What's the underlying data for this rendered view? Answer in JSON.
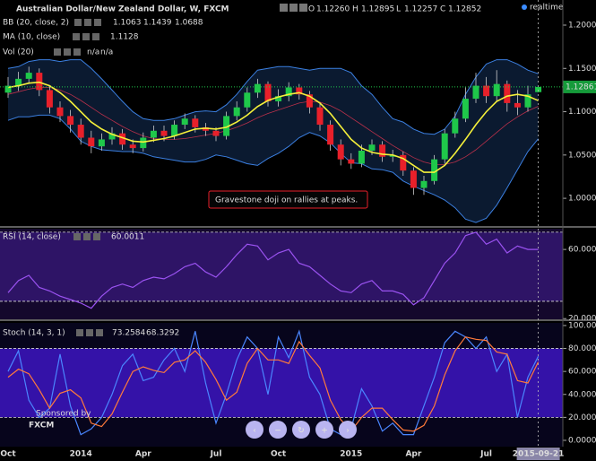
{
  "chart_data": [
    {
      "type": "candlestick",
      "title": "Australian Dollar/New Zealand Dollar, W, FXCM",
      "readout": {
        "labels": [
          "O",
          "H",
          "L",
          "C"
        ],
        "values": [
          1.1226,
          1.12895,
          1.12257,
          1.12852
        ],
        "value_labels": [
          "1.12260",
          "1.12895",
          "1.12257",
          "1.12852"
        ]
      },
      "status": "realtime",
      "open": [
        1.122,
        1.13,
        1.138,
        1.145,
        1.125,
        1.105,
        1.095,
        1.085,
        1.07,
        1.06,
        1.068,
        1.075,
        1.062,
        1.058,
        1.07,
        1.078,
        1.072,
        1.085,
        1.092,
        1.082,
        1.078,
        1.072,
        1.095,
        1.105,
        1.122,
        1.132,
        1.112,
        1.118,
        1.128,
        1.12,
        1.105,
        1.085,
        1.062,
        1.045,
        1.04,
        1.055,
        1.062,
        1.048,
        1.05,
        1.032,
        1.012,
        1.02,
        1.045,
        1.075,
        1.092,
        1.115,
        1.13,
        1.118,
        1.132,
        1.11,
        1.105,
        1.1226
      ],
      "high": [
        1.14,
        1.146,
        1.152,
        1.15,
        1.13,
        1.112,
        1.102,
        1.092,
        1.078,
        1.075,
        1.082,
        1.08,
        1.068,
        1.076,
        1.084,
        1.084,
        1.09,
        1.098,
        1.096,
        1.087,
        1.082,
        1.1,
        1.112,
        1.128,
        1.138,
        1.135,
        1.126,
        1.134,
        1.132,
        1.124,
        1.11,
        1.09,
        1.068,
        1.052,
        1.062,
        1.068,
        1.066,
        1.056,
        1.054,
        1.036,
        1.026,
        1.05,
        1.08,
        1.1,
        1.128,
        1.145,
        1.14,
        1.148,
        1.136,
        1.125,
        1.13,
        1.12895
      ],
      "low": [
        1.116,
        1.124,
        1.132,
        1.118,
        1.098,
        1.088,
        1.076,
        1.062,
        1.052,
        1.055,
        1.062,
        1.056,
        1.052,
        1.054,
        1.065,
        1.066,
        1.068,
        1.08,
        1.076,
        1.072,
        1.066,
        1.068,
        1.09,
        1.1,
        1.116,
        1.106,
        1.106,
        1.112,
        1.114,
        1.098,
        1.078,
        1.055,
        1.038,
        1.034,
        1.036,
        1.05,
        1.042,
        1.042,
        1.026,
        1.004,
        1.004,
        1.016,
        1.04,
        1.07,
        1.088,
        1.11,
        1.11,
        1.112,
        1.1,
        1.096,
        1.1,
        1.12257
      ],
      "close": [
        1.13,
        1.138,
        1.145,
        1.125,
        1.105,
        1.095,
        1.085,
        1.07,
        1.06,
        1.068,
        1.075,
        1.062,
        1.058,
        1.07,
        1.078,
        1.072,
        1.085,
        1.092,
        1.082,
        1.078,
        1.072,
        1.095,
        1.105,
        1.122,
        1.132,
        1.112,
        1.118,
        1.128,
        1.12,
        1.105,
        1.085,
        1.062,
        1.045,
        1.04,
        1.055,
        1.062,
        1.048,
        1.05,
        1.032,
        1.012,
        1.02,
        1.045,
        1.075,
        1.092,
        1.115,
        1.13,
        1.118,
        1.132,
        1.11,
        1.105,
        1.12,
        1.12852
      ],
      "up_color": "#1fc84a",
      "down_color": "#e8202a",
      "bb": {
        "name": "BB (20, close, 2)",
        "upper_color": "#3b7fe0",
        "middle_color": "#b8304a",
        "fill": "#0b1a30",
        "middle": [
          1.12,
          1.123,
          1.126,
          1.128,
          1.128,
          1.125,
          1.12,
          1.113,
          1.105,
          1.097,
          1.09,
          1.083,
          1.077,
          1.072,
          1.069,
          1.068,
          1.068,
          1.069,
          1.071,
          1.073,
          1.075,
          1.078,
          1.082,
          1.087,
          1.093,
          1.098,
          1.102,
          1.106,
          1.11,
          1.112,
          1.111,
          1.107,
          1.101,
          1.093,
          1.085,
          1.077,
          1.069,
          1.061,
          1.054,
          1.047,
          1.042,
          1.039,
          1.039,
          1.042,
          1.048,
          1.056,
          1.066,
          1.076,
          1.086,
          1.094,
          1.101,
          1.1063
        ],
        "upper": [
          1.15,
          1.152,
          1.158,
          1.16,
          1.16,
          1.158,
          1.16,
          1.16,
          1.15,
          1.138,
          1.125,
          1.112,
          1.1,
          1.092,
          1.09,
          1.09,
          1.092,
          1.096,
          1.1,
          1.101,
          1.1,
          1.108,
          1.12,
          1.135,
          1.148,
          1.15,
          1.152,
          1.152,
          1.15,
          1.148,
          1.15,
          1.15,
          1.15,
          1.145,
          1.13,
          1.12,
          1.105,
          1.092,
          1.088,
          1.08,
          1.075,
          1.074,
          1.08,
          1.095,
          1.12,
          1.14,
          1.155,
          1.16,
          1.16,
          1.155,
          1.148,
          1.1439
        ],
        "lower": [
          1.09,
          1.094,
          1.094,
          1.096,
          1.096,
          1.092,
          1.08,
          1.066,
          1.06,
          1.056,
          1.055,
          1.054,
          1.054,
          1.052,
          1.048,
          1.046,
          1.044,
          1.042,
          1.042,
          1.045,
          1.05,
          1.048,
          1.044,
          1.04,
          1.038,
          1.046,
          1.052,
          1.06,
          1.07,
          1.076,
          1.072,
          1.064,
          1.052,
          1.041,
          1.04,
          1.034,
          1.033,
          1.03,
          1.02,
          1.014,
          1.009,
          1.004,
          0.998,
          0.989,
          0.976,
          0.972,
          0.977,
          0.992,
          1.012,
          1.033,
          1.054,
          1.0688
        ]
      },
      "ma": {
        "name": "MA (10, close)",
        "color": "#f5f03a",
        "values": [
          1.128,
          1.13,
          1.133,
          1.134,
          1.13,
          1.122,
          1.112,
          1.1,
          1.088,
          1.08,
          1.074,
          1.07,
          1.066,
          1.065,
          1.067,
          1.069,
          1.072,
          1.076,
          1.08,
          1.081,
          1.08,
          1.082,
          1.088,
          1.096,
          1.106,
          1.113,
          1.117,
          1.12,
          1.122,
          1.118,
          1.11,
          1.098,
          1.083,
          1.068,
          1.058,
          1.053,
          1.051,
          1.05,
          1.046,
          1.038,
          1.03,
          1.03,
          1.038,
          1.052,
          1.068,
          1.085,
          1.1,
          1.112,
          1.118,
          1.12,
          1.118,
          1.1128
        ]
      },
      "vol": {
        "name": "Vol (20)",
        "readout": [
          "n/a",
          "n/a"
        ]
      },
      "last_price": 1.12861,
      "annotation": "Gravestone doji on rallies at peaks.",
      "ylim": [
        0.968,
        1.229
      ],
      "yticks": [
        {
          "value": 1.0,
          "label": "1.00000"
        },
        {
          "value": 1.05,
          "label": "1.05000"
        },
        {
          "value": 1.1,
          "label": "1.10000"
        },
        {
          "value": 1.15,
          "label": "1.15000"
        },
        {
          "value": 1.2,
          "label": "1.20000"
        }
      ]
    },
    {
      "type": "line",
      "title": "RSI (14, close)",
      "color": "#9a52f0",
      "values": [
        35,
        42,
        45,
        38,
        36,
        33,
        31,
        29,
        26,
        33,
        38,
        40,
        38,
        42,
        44,
        43,
        46,
        50,
        52,
        47,
        44,
        50,
        57,
        63,
        62,
        54,
        58,
        60,
        52,
        50,
        45,
        40,
        36,
        35,
        40,
        42,
        36,
        36,
        34,
        28,
        32,
        42,
        52,
        58,
        68,
        70,
        63,
        66,
        58,
        62,
        60,
        60.0011
      ],
      "levels": [
        30,
        70
      ],
      "ylim": [
        19.6,
        72
      ],
      "yticks": [
        {
          "value": 20,
          "label": "20.0000"
        },
        {
          "value": 60,
          "label": "60.0000"
        }
      ]
    },
    {
      "type": "line",
      "title": "Stoch (14, 3, 1)",
      "series": [
        {
          "name": "%K",
          "color": "#4a86ff",
          "values": [
            60,
            78,
            35,
            20,
            28,
            75,
            30,
            5,
            10,
            20,
            40,
            65,
            75,
            52,
            55,
            70,
            80,
            60,
            95,
            50,
            15,
            40,
            70,
            90,
            80,
            40,
            90,
            72,
            95,
            55,
            40,
            10,
            5,
            10,
            45,
            30,
            8,
            15,
            5,
            5,
            30,
            55,
            85,
            95,
            90,
            80,
            90,
            60,
            75,
            20,
            55,
            73.2584
          ]
        },
        {
          "name": "%D",
          "color": "#ff7a3a",
          "values": [
            55,
            62,
            58,
            44,
            28,
            41,
            44,
            37,
            15,
            12,
            23,
            42,
            60,
            64,
            61,
            59,
            68,
            70,
            78,
            68,
            53,
            35,
            42,
            67,
            80,
            70,
            70,
            67,
            86,
            74,
            63,
            35,
            18,
            8,
            20,
            28,
            28,
            18,
            9,
            8,
            13,
            30,
            57,
            78,
            90,
            88,
            87,
            77,
            75,
            52,
            50,
            68.3292
          ]
        }
      ],
      "levels": [
        20,
        80
      ],
      "categories": [
        "Oct",
        null,
        null,
        null,
        null,
        null,
        null,
        "2014",
        null,
        null,
        null,
        null,
        null,
        "Apr",
        null,
        null,
        null,
        null,
        null,
        null,
        "Jul",
        null,
        null,
        null,
        null,
        null,
        "Oct",
        null,
        null,
        null,
        null,
        null,
        null,
        "2015",
        null,
        null,
        null,
        null,
        null,
        "Apr",
        null,
        null,
        null,
        null,
        null,
        null,
        "Jul",
        null,
        null,
        null,
        null,
        "2015-09-21"
      ],
      "ylim": [
        -5.5,
        102.3
      ],
      "yticks": [
        {
          "value": 0,
          "label": "0.0000"
        },
        {
          "value": 20,
          "label": "20.0000"
        },
        {
          "value": 40,
          "label": "40.0000"
        },
        {
          "value": 60,
          "label": "60.0000"
        },
        {
          "value": 80,
          "label": "80.0000"
        },
        {
          "value": 100,
          "label": "100.0000"
        }
      ]
    }
  ],
  "branding": {
    "sponsor": "Sponsored by",
    "brand": "FXCM"
  }
}
